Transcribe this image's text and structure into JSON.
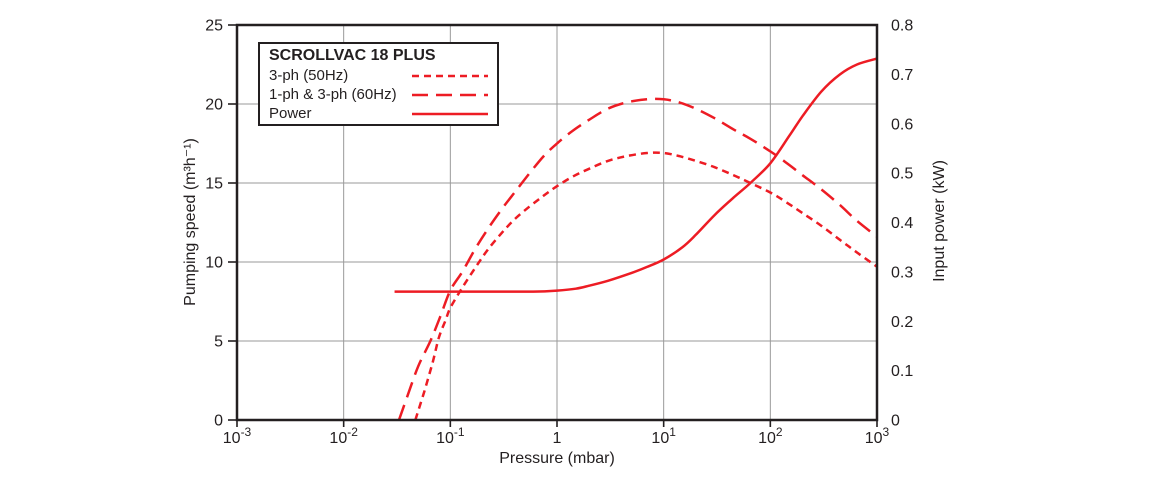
{
  "colors": {
    "curve_red": "#ed1c24",
    "text": "#231f20",
    "grid": "#9a9a9a",
    "frame": "#231f20",
    "background": "#ffffff"
  },
  "legend": {
    "title": "SCROLLVAC 18 PLUS",
    "entries": [
      {
        "label": "3-ph (50Hz)",
        "style": "short-dash"
      },
      {
        "label": "1-ph & 3-ph (60Hz)",
        "style": "long-dash"
      },
      {
        "label": "Power",
        "style": "solid"
      }
    ]
  },
  "axes": {
    "x": {
      "label": "Pressure (mbar)",
      "scale": "log10",
      "min_exponent": -3,
      "max_exponent": 3,
      "tick_labels": [
        "10^-3",
        "10^-2",
        "10^-1",
        "1",
        "10^1",
        "10^2",
        "10^3"
      ]
    },
    "y_left": {
      "label": "Pumping speed (m³h⁻¹)",
      "min": 0,
      "max": 25,
      "ticks": [
        0,
        5,
        10,
        15,
        20,
        25
      ]
    },
    "y_right": {
      "label": "Input power (kW)",
      "min": 0,
      "max": 0.8,
      "ticks": [
        0,
        0.1,
        0.2,
        0.3,
        0.4,
        0.5,
        0.6,
        0.7,
        0.8
      ]
    }
  },
  "chart_data": {
    "type": "line",
    "title": "SCROLLVAC 18 PLUS",
    "xlabel": "Pressure (mbar)",
    "x_scale": "log",
    "x_range": [
      0.001,
      1000
    ],
    "ylabel_left": "Pumping speed (m³h⁻¹)",
    "ylim_left": [
      0,
      25
    ],
    "ylabel_right": "Input power (kW)",
    "ylim_right": [
      0,
      0.8
    ],
    "grid": true,
    "legend_position": "top-left",
    "series": [
      {
        "name": "3-ph (50Hz)",
        "axis": "left",
        "unit": "m3/h",
        "style": "short-dash",
        "points": [
          [
            0.047,
            0
          ],
          [
            0.057,
            1.8
          ],
          [
            0.068,
            3.6
          ],
          [
            0.078,
            5.2
          ],
          [
            0.09,
            6.3
          ],
          [
            0.1,
            7.1
          ],
          [
            0.13,
            8.4
          ],
          [
            0.17,
            9.6
          ],
          [
            0.22,
            10.7
          ],
          [
            0.3,
            11.8
          ],
          [
            0.4,
            12.7
          ],
          [
            0.55,
            13.5
          ],
          [
            0.75,
            14.2
          ],
          [
            1,
            14.8
          ],
          [
            1.4,
            15.4
          ],
          [
            2,
            15.9
          ],
          [
            3,
            16.4
          ],
          [
            4.5,
            16.7
          ],
          [
            7,
            16.9
          ],
          [
            10,
            16.9
          ],
          [
            14,
            16.7
          ],
          [
            20,
            16.4
          ],
          [
            30,
            16.0
          ],
          [
            45,
            15.5
          ],
          [
            65,
            15.0
          ],
          [
            100,
            14.4
          ],
          [
            140,
            13.8
          ],
          [
            200,
            13.1
          ],
          [
            300,
            12.3
          ],
          [
            450,
            11.4
          ],
          [
            650,
            10.6
          ],
          [
            1000,
            9.7
          ]
        ]
      },
      {
        "name": "1-ph & 3-ph (60Hz)",
        "axis": "left",
        "unit": "m3/h",
        "style": "long-dash",
        "points": [
          [
            0.033,
            0
          ],
          [
            0.04,
            1.6
          ],
          [
            0.05,
            3.4
          ],
          [
            0.065,
            5.0
          ],
          [
            0.08,
            6.5
          ],
          [
            0.1,
            8.2
          ],
          [
            0.13,
            9.4
          ],
          [
            0.17,
            10.8
          ],
          [
            0.22,
            12.0
          ],
          [
            0.3,
            13.3
          ],
          [
            0.4,
            14.4
          ],
          [
            0.55,
            15.6
          ],
          [
            0.75,
            16.7
          ],
          [
            1,
            17.5
          ],
          [
            1.4,
            18.3
          ],
          [
            2,
            19.0
          ],
          [
            3,
            19.7
          ],
          [
            4.5,
            20.1
          ],
          [
            7,
            20.3
          ],
          [
            10,
            20.3
          ],
          [
            14,
            20.1
          ],
          [
            20,
            19.7
          ],
          [
            30,
            19.1
          ],
          [
            45,
            18.4
          ],
          [
            65,
            17.8
          ],
          [
            100,
            17.0
          ],
          [
            140,
            16.3
          ],
          [
            200,
            15.5
          ],
          [
            300,
            14.6
          ],
          [
            450,
            13.6
          ],
          [
            650,
            12.6
          ],
          [
            1000,
            11.6
          ]
        ]
      },
      {
        "name": "Power",
        "axis": "right",
        "unit": "kW",
        "style": "solid",
        "points": [
          [
            0.03,
            0.26
          ],
          [
            0.06,
            0.26
          ],
          [
            0.1,
            0.26
          ],
          [
            0.3,
            0.26
          ],
          [
            0.6,
            0.26
          ],
          [
            1,
            0.262
          ],
          [
            1.5,
            0.266
          ],
          [
            2,
            0.272
          ],
          [
            3,
            0.282
          ],
          [
            5,
            0.298
          ],
          [
            7,
            0.31
          ],
          [
            10,
            0.325
          ],
          [
            15,
            0.35
          ],
          [
            20,
            0.375
          ],
          [
            30,
            0.415
          ],
          [
            45,
            0.45
          ],
          [
            65,
            0.48
          ],
          [
            100,
            0.52
          ],
          [
            150,
            0.575
          ],
          [
            200,
            0.615
          ],
          [
            300,
            0.665
          ],
          [
            450,
            0.7
          ],
          [
            650,
            0.72
          ],
          [
            1000,
            0.732
          ]
        ]
      }
    ]
  }
}
